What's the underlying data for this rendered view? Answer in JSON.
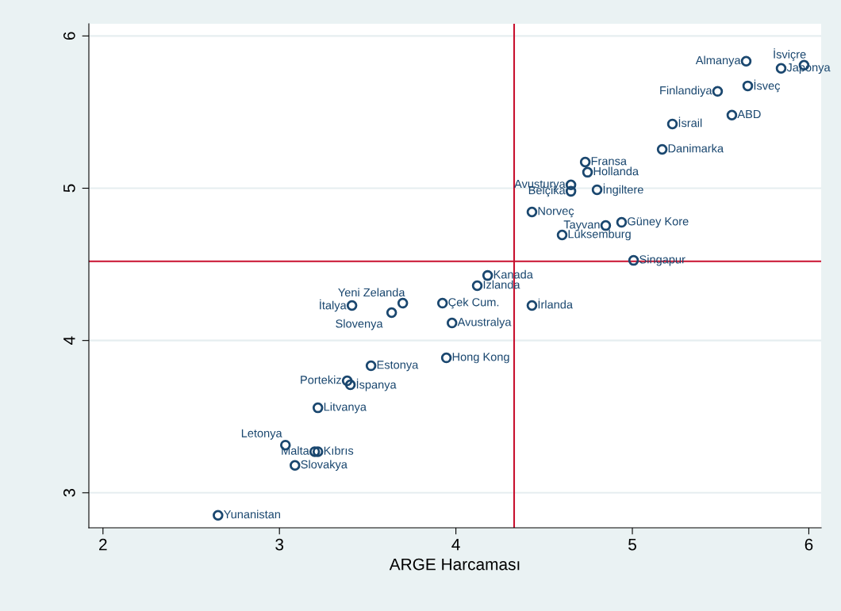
{
  "chart_data": {
    "type": "scatter",
    "xlabel": "ARGE Harcaması",
    "x": [
      5.645,
      5.973,
      5.843,
      5.654,
      5.483,
      5.564,
      5.227,
      5.169,
      4.733,
      4.746,
      4.652,
      4.652,
      4.8,
      4.431,
      4.939,
      4.849,
      4.602,
      5.007,
      4.18,
      4.121,
      3.924,
      4.431,
      3.411,
      3.699,
      3.636,
      3.978,
      3.946,
      3.519,
      3.384,
      3.402,
      3.218,
      3.034,
      3.2,
      3.218,
      3.088,
      2.652
    ],
    "series": [
      {
        "color": "#1a476f",
        "values": [
          5.834,
          5.808,
          5.787,
          5.672,
          5.636,
          5.48,
          5.422,
          5.255,
          5.172,
          5.105,
          5.022,
          4.98,
          4.99,
          4.844,
          4.776,
          4.755,
          4.693,
          4.526,
          4.427,
          4.36,
          4.245,
          4.23,
          4.23,
          4.245,
          4.183,
          4.115,
          3.886,
          3.834,
          3.735,
          3.709,
          3.558,
          3.313,
          3.27,
          3.27,
          3.18,
          2.852
        ]
      }
    ],
    "annotations": [
      {
        "text": "Almanya",
        "x": 5.645,
        "y": 5.834
      },
      {
        "text": "İsviçre",
        "x": 5.973,
        "y": 5.808
      },
      {
        "text": "Japonya",
        "x": 5.843,
        "y": 5.787
      },
      {
        "text": "İsveç",
        "x": 5.654,
        "y": 5.672
      },
      {
        "text": "Finlandiya",
        "x": 5.483,
        "y": 5.636
      },
      {
        "text": "ABD",
        "x": 5.564,
        "y": 5.48
      },
      {
        "text": "İsrail",
        "x": 5.227,
        "y": 5.422
      },
      {
        "text": "Danimarka",
        "x": 5.169,
        "y": 5.255
      },
      {
        "text": "Fransa",
        "x": 4.733,
        "y": 5.172
      },
      {
        "text": "Hollanda",
        "x": 4.746,
        "y": 5.105
      },
      {
        "text": "Avusturya",
        "x": 4.652,
        "y": 5.022
      },
      {
        "text": "Belçika",
        "x": 4.652,
        "y": 4.98
      },
      {
        "text": "İngiltere",
        "x": 4.8,
        "y": 4.99
      },
      {
        "text": "Norveç",
        "x": 4.431,
        "y": 4.844
      },
      {
        "text": "Güney Kore",
        "x": 4.939,
        "y": 4.776
      },
      {
        "text": "Tayvan",
        "x": 4.849,
        "y": 4.755
      },
      {
        "text": "Lüksemburg",
        "x": 4.602,
        "y": 4.693
      },
      {
        "text": "Singapur",
        "x": 5.007,
        "y": 4.526
      },
      {
        "text": "Kanada",
        "x": 4.18,
        "y": 4.427
      },
      {
        "text": "İzlanda",
        "x": 4.121,
        "y": 4.36
      },
      {
        "text": "Çek Cum.",
        "x": 3.924,
        "y": 4.245
      },
      {
        "text": "İrlanda",
        "x": 4.431,
        "y": 4.23
      },
      {
        "text": "İtalya",
        "x": 3.411,
        "y": 4.23
      },
      {
        "text": "Yeni Zelanda",
        "x": 3.699,
        "y": 4.245
      },
      {
        "text": "Slovenya",
        "x": 3.636,
        "y": 4.183
      },
      {
        "text": "Avustralya",
        "x": 3.978,
        "y": 4.115
      },
      {
        "text": "Hong Kong",
        "x": 3.946,
        "y": 3.886
      },
      {
        "text": "Estonya",
        "x": 3.519,
        "y": 3.834
      },
      {
        "text": "Portekiz",
        "x": 3.384,
        "y": 3.735
      },
      {
        "text": "İspanya",
        "x": 3.402,
        "y": 3.709
      },
      {
        "text": "Litvanya",
        "x": 3.218,
        "y": 3.558
      },
      {
        "text": "Letonya",
        "x": 3.034,
        "y": 3.313
      },
      {
        "text": "Malta",
        "x": 3.2,
        "y": 3.27
      },
      {
        "text": "Kıbrıs",
        "x": 3.218,
        "y": 3.27
      },
      {
        "text": "Slovakya",
        "x": 3.088,
        "y": 3.18
      },
      {
        "text": "Yunanistan",
        "x": 2.652,
        "y": 2.852
      }
    ],
    "ref_lines": [
      {
        "axis": "x",
        "value": 4.33,
        "color": "#c8102e"
      },
      {
        "axis": "y",
        "value": 4.52,
        "color": "#c8102e"
      }
    ],
    "xlim": [
      1.92,
      6.07
    ],
    "ylim": [
      2.77,
      6.08
    ],
    "xticks": [
      2,
      3,
      4,
      5,
      6
    ],
    "yticks": [
      3,
      4,
      5,
      6
    ],
    "grid": "y",
    "marker": "circle"
  }
}
